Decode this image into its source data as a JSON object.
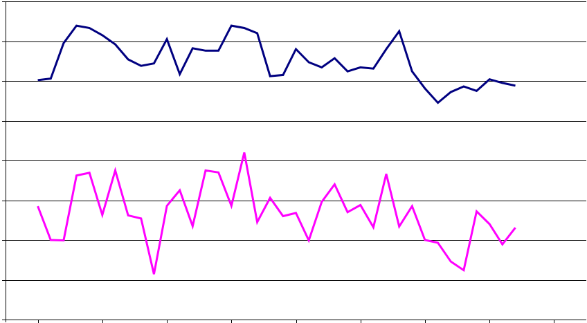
{
  "chart_data": {
    "type": "line",
    "title": "",
    "xlabel": "",
    "ylabel": "",
    "ylim": [
      0,
      8
    ],
    "xlim": [
      0.5,
      9.5
    ],
    "grid": true,
    "legend": "none",
    "x_ticks": [
      1,
      2,
      3,
      4,
      5,
      6,
      7,
      8,
      9
    ],
    "x": [
      1.0,
      1.2,
      1.4,
      1.6,
      1.8,
      2.0,
      2.2,
      2.4,
      2.6,
      2.8,
      3.0,
      3.2,
      3.4,
      3.6,
      3.8,
      4.0,
      4.2,
      4.4,
      4.6,
      4.8,
      5.0,
      5.2,
      5.4,
      5.6,
      5.8,
      6.0,
      6.2,
      6.4,
      6.6,
      6.8,
      7.0,
      7.2,
      7.4,
      7.6,
      7.8,
      8.0,
      8.2,
      8.4
    ],
    "series": [
      {
        "color": "#000080",
        "values": [
          6.02,
          6.06,
          6.95,
          7.39,
          7.33,
          7.15,
          6.92,
          6.54,
          6.38,
          6.44,
          7.05,
          6.17,
          6.82,
          6.76,
          6.76,
          7.39,
          7.33,
          7.2,
          6.12,
          6.15,
          6.8,
          6.47,
          6.34,
          6.57,
          6.24,
          6.34,
          6.31,
          6.8,
          7.25,
          6.24,
          5.81,
          5.45,
          5.72,
          5.86,
          5.75,
          6.04,
          5.95,
          5.88
        ]
      },
      {
        "color": "#FF00FF",
        "values": [
          2.85,
          2.0,
          1.99,
          3.62,
          3.69,
          2.63,
          3.75,
          2.62,
          2.54,
          1.14,
          2.86,
          3.25,
          2.35,
          3.75,
          3.7,
          2.86,
          4.2,
          2.45,
          3.06,
          2.6,
          2.68,
          1.99,
          2.96,
          3.4,
          2.7,
          2.88,
          2.32,
          3.66,
          2.34,
          2.85,
          2.0,
          1.93,
          1.46,
          1.24,
          2.72,
          2.4,
          1.89,
          2.31
        ]
      }
    ]
  }
}
